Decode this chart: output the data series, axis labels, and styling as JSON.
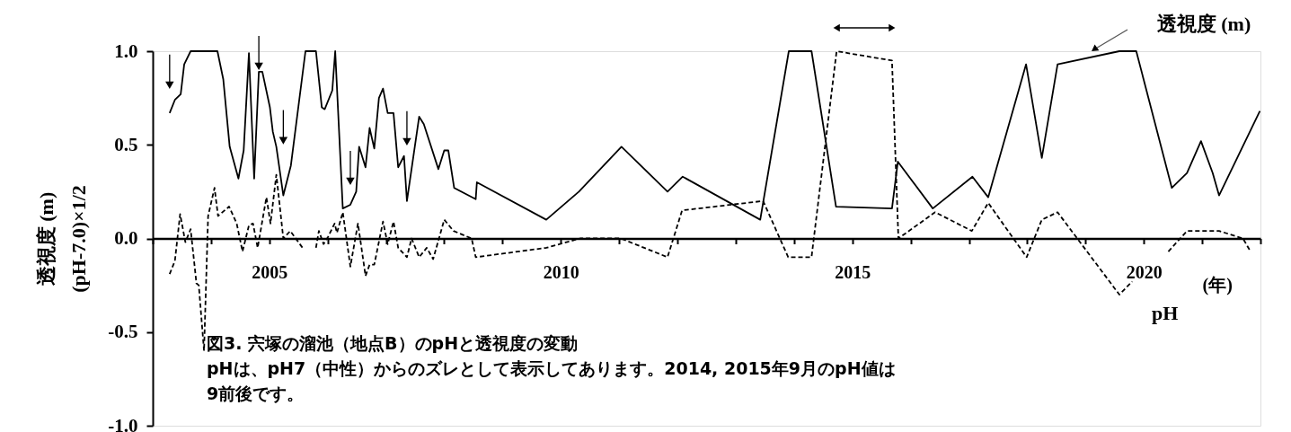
{
  "chart_data": {
    "type": "line",
    "ylabel": "透視度 (m)\n(pH-7.0)×1/2",
    "xlabel": "(年)",
    "annotations": [
      "図3. 宍塚の溜池（地点B）のpHと透視度の変動",
      "pHは、pH7（中性）からのズレとして表示してあります。2014, 2015年9月のpH値は9前後です。"
    ],
    "xlim": [
      2003,
      2022
    ],
    "xticks": [
      {
        "value": 2003,
        "label": null
      },
      {
        "value": 2004,
        "label": null
      },
      2005,
      {
        "value": 2006,
        "label": null
      },
      {
        "value": 2007,
        "label": null
      },
      {
        "value": 2008,
        "label": null
      },
      {
        "value": 2009,
        "label": null
      },
      2010,
      {
        "value": 2011,
        "label": null
      },
      {
        "value": 2012,
        "label": null
      },
      {
        "value": 2013,
        "label": null
      },
      {
        "value": 2014,
        "label": null
      },
      2015,
      {
        "value": 2016,
        "label": null
      },
      {
        "value": 2017,
        "label": null
      },
      {
        "value": 2018,
        "label": null
      },
      {
        "value": 2019,
        "label": null
      },
      2020,
      {
        "value": 2021,
        "label": null
      },
      {
        "value": 2022,
        "label": null
      }
    ],
    "ylim": [
      -1,
      1
    ],
    "yticks": [
      {
        "value": -1,
        "label": "-1.0"
      },
      {
        "value": -0.5,
        "label": "-0.5"
      },
      {
        "value": 0,
        "label": "0.0"
      },
      {
        "value": 0.5,
        "label": "0.5"
      },
      {
        "value": 1,
        "label": "1.0"
      }
    ],
    "grid": false,
    "legend": false,
    "marker": "none",
    "series": [
      {
        "name": "透視度 (m)",
        "color": "#000000",
        "line_style": "solid",
        "x": [
          2003.29,
          2003.38,
          2003.48,
          2003.54,
          2003.65,
          2004.11,
          2004.21,
          2004.32,
          2004.47,
          2004.56,
          2004.65,
          2004.74,
          2004.82,
          2004.88,
          2005.01,
          2005.06,
          2005.12,
          2005.24,
          2005.37,
          2005.62,
          2005.8,
          2005.9,
          2005.95,
          2006.08,
          2006.13,
          2006.26,
          2006.39,
          2006.49,
          2006.54,
          2006.65,
          2006.72,
          2006.8,
          2006.88,
          2006.95,
          2007.03,
          2007.13,
          2007.21,
          2007.31,
          2007.36,
          2007.57,
          2007.65,
          2007.9,
          2008.0,
          2008.07,
          2008.17,
          2008.54,
          2008.56,
          2009.75,
          2010.31,
          2011.04,
          2011.83,
          2012.09,
          2013.42,
          2013.91,
          2014.3,
          2014.72,
          2015.68,
          2015.78,
          2016.38,
          2017.06,
          2017.33,
          2017.98,
          2018.25,
          2018.52,
          2019.58,
          2019.87,
          2020.48,
          2020.74,
          2020.98,
          2021.18,
          2021.29,
          2021.99
        ],
        "values": [
          0.67,
          0.74,
          0.77,
          0.93,
          1.0,
          1.0,
          0.85,
          0.49,
          0.32,
          0.47,
          0.99,
          0.32,
          0.89,
          0.89,
          0.7,
          0.57,
          0.49,
          0.23,
          0.39,
          1.0,
          1.0,
          0.7,
          0.69,
          0.79,
          1.0,
          0.16,
          0.18,
          0.25,
          0.49,
          0.38,
          0.59,
          0.48,
          0.75,
          0.8,
          0.67,
          0.67,
          0.38,
          0.44,
          0.2,
          0.65,
          0.61,
          0.37,
          0.47,
          0.47,
          0.27,
          0.21,
          0.3,
          0.1,
          0.25,
          0.49,
          0.25,
          0.33,
          0.1,
          1.0,
          1.0,
          0.17,
          0.16,
          0.41,
          0.16,
          0.33,
          0.22,
          0.93,
          0.43,
          0.93,
          1.0,
          1.0,
          0.27,
          0.35,
          0.52,
          0.35,
          0.23,
          0.68
        ]
      },
      {
        "name": "pH",
        "color": "#000000",
        "line_style": "dashed",
        "x": [
          2003.29,
          2003.38,
          2003.47,
          2003.56,
          2003.65,
          2003.75,
          2003.79,
          2003.88,
          2003.95,
          2004.06,
          2004.12,
          2004.31,
          2004.44,
          2004.54,
          2004.65,
          2004.72,
          2004.8,
          2004.95,
          2005.02,
          2005.12,
          2005.24,
          2005.36,
          2005.57,
          2005.7,
          2005.8,
          2005.85,
          2005.93,
          2006.01,
          2006.12,
          2006.16,
          2006.26,
          2006.39,
          2006.52,
          2006.65,
          2006.72,
          2006.8,
          2006.95,
          2007.03,
          2007.13,
          2007.21,
          2007.36,
          2007.44,
          2007.57,
          2007.7,
          2007.81,
          2008.0,
          2008.16,
          2008.47,
          2008.54,
          2009.75,
          2010.33,
          2011.03,
          2011.83,
          2012.08,
          2013.47,
          2013.9,
          2014.3,
          2014.73,
          2015.68,
          2015.79,
          2016.42,
          2017.05,
          2017.33,
          2017.99,
          2018.25,
          2018.52,
          2019.58,
          2019.8,
          2020.1,
          2020.42,
          2020.74,
          2021.29,
          2021.7,
          2021.83
        ],
        "values": [
          -0.19,
          -0.12,
          0.13,
          -0.02,
          0.05,
          -0.24,
          -0.25,
          -0.6,
          0.12,
          0.27,
          0.12,
          0.17,
          0.08,
          -0.07,
          0.07,
          0.08,
          -0.05,
          0.22,
          0.08,
          0.34,
          0.0,
          0.04,
          -0.05,
          null,
          -0.05,
          0.04,
          -0.03,
          0.01,
          0.08,
          0.03,
          0.14,
          -0.15,
          0.08,
          -0.2,
          -0.14,
          -0.14,
          0.09,
          -0.03,
          0.09,
          -0.05,
          -0.1,
          0.0,
          -0.1,
          -0.05,
          -0.11,
          0.1,
          0.04,
          0.0,
          -0.1,
          -0.05,
          0.0,
          0.0,
          -0.1,
          0.15,
          0.2,
          -0.1,
          -0.1,
          1.0,
          0.95,
          0.0,
          0.14,
          0.04,
          0.19,
          -0.1,
          0.1,
          0.14,
          -0.3,
          -0.23,
          null,
          -0.07,
          0.04,
          0.04,
          0.0,
          -0.07
        ]
      }
    ]
  }
}
